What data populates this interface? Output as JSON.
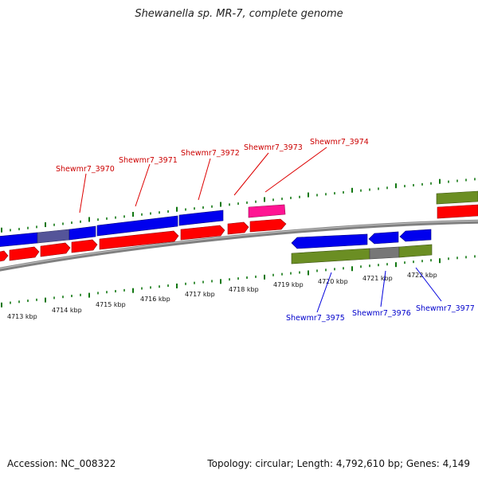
{
  "title": "Shewanella sp. MR-7, complete genome",
  "accession": "Accession: NC_008322",
  "summary": "Topology: circular; Length: 4,792,610 bp; Genes: 4,149",
  "colors": {
    "forward_cds": "#ff0000",
    "forward_gene": "#0000ee",
    "reverse_gene": "#0000ee",
    "reverse_cds": "#6b8e23",
    "overlap": "#777777",
    "rna": "#ff1493",
    "ticks": "#117711",
    "backbone": "#808080",
    "label_forward": "#cc0000",
    "label_reverse": "#0000cc"
  },
  "kbp_labels": [
    "4713 kbp",
    "4714 kbp",
    "4715 kbp",
    "4716 kbp",
    "4717 kbp",
    "4718 kbp",
    "4719 kbp",
    "4720 kbp",
    "4721 kbp",
    "4722 kbp"
  ],
  "forward_genes": [
    "Shewmr7_3970",
    "Shewmr7_3971",
    "Shewmr7_3972",
    "Shewmr7_3973",
    "Shewmr7_3974"
  ],
  "reverse_genes": [
    "Shewmr7_3975",
    "Shewmr7_3976",
    "Shewmr7_3977"
  ]
}
